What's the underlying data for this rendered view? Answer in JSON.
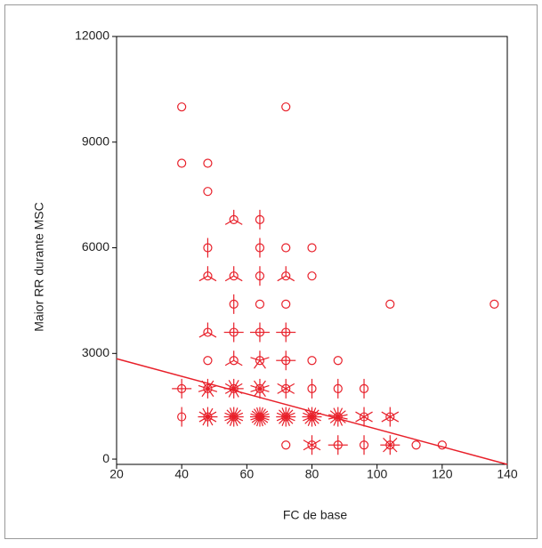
{
  "chart_data": {
    "type": "sunflower",
    "x_label": "FC de base",
    "y_label": "Maior RR durante MSC",
    "xlim": [
      20,
      140
    ],
    "ylim": [
      -150,
      12000
    ],
    "xticks": [
      20,
      40,
      60,
      80,
      100,
      120,
      140
    ],
    "yticks": [
      0,
      3000,
      6000,
      9000,
      12000
    ],
    "color": "#e8202a",
    "series": [
      {
        "x": [
          40,
          40,
          40,
          40,
          48,
          48,
          48,
          48,
          48,
          48,
          48,
          48,
          56,
          56,
          56,
          56,
          56,
          56,
          56,
          64,
          64,
          64,
          64,
          64,
          64,
          64,
          64,
          72,
          72,
          72,
          72,
          72,
          72,
          72,
          72,
          72,
          80,
          80,
          80,
          80,
          80,
          80,
          88,
          88,
          88,
          88,
          96,
          96,
          96,
          104,
          104,
          104,
          112,
          120,
          136
        ],
        "y": [
          10000,
          8400,
          2000,
          1200,
          8400,
          7600,
          6000,
          5200,
          3600,
          2800,
          2000,
          1200,
          6800,
          5200,
          4400,
          3600,
          2800,
          2000,
          1200,
          6800,
          6000,
          5200,
          4400,
          3600,
          2800,
          2000,
          1200,
          10000,
          6000,
          5200,
          4400,
          3600,
          2800,
          2000,
          1200,
          400,
          6000,
          5200,
          2800,
          2000,
          1200,
          400,
          2800,
          2000,
          1200,
          400,
          2000,
          1200,
          400,
          4400,
          1200,
          400,
          400,
          400,
          4400
        ],
        "counts": [
          1,
          1,
          4,
          2,
          1,
          1,
          2,
          3,
          3,
          1,
          10,
          12,
          3,
          3,
          2,
          4,
          3,
          12,
          16,
          2,
          2,
          2,
          1,
          4,
          5,
          10,
          20,
          1,
          1,
          3,
          1,
          4,
          4,
          6,
          16,
          1,
          1,
          1,
          1,
          2,
          16,
          6,
          1,
          2,
          14,
          4,
          2,
          6,
          2,
          1,
          6,
          8,
          1,
          1,
          1
        ]
      }
    ],
    "fit_line": {
      "x": [
        20,
        140
      ],
      "y": [
        2850,
        -150
      ]
    }
  }
}
